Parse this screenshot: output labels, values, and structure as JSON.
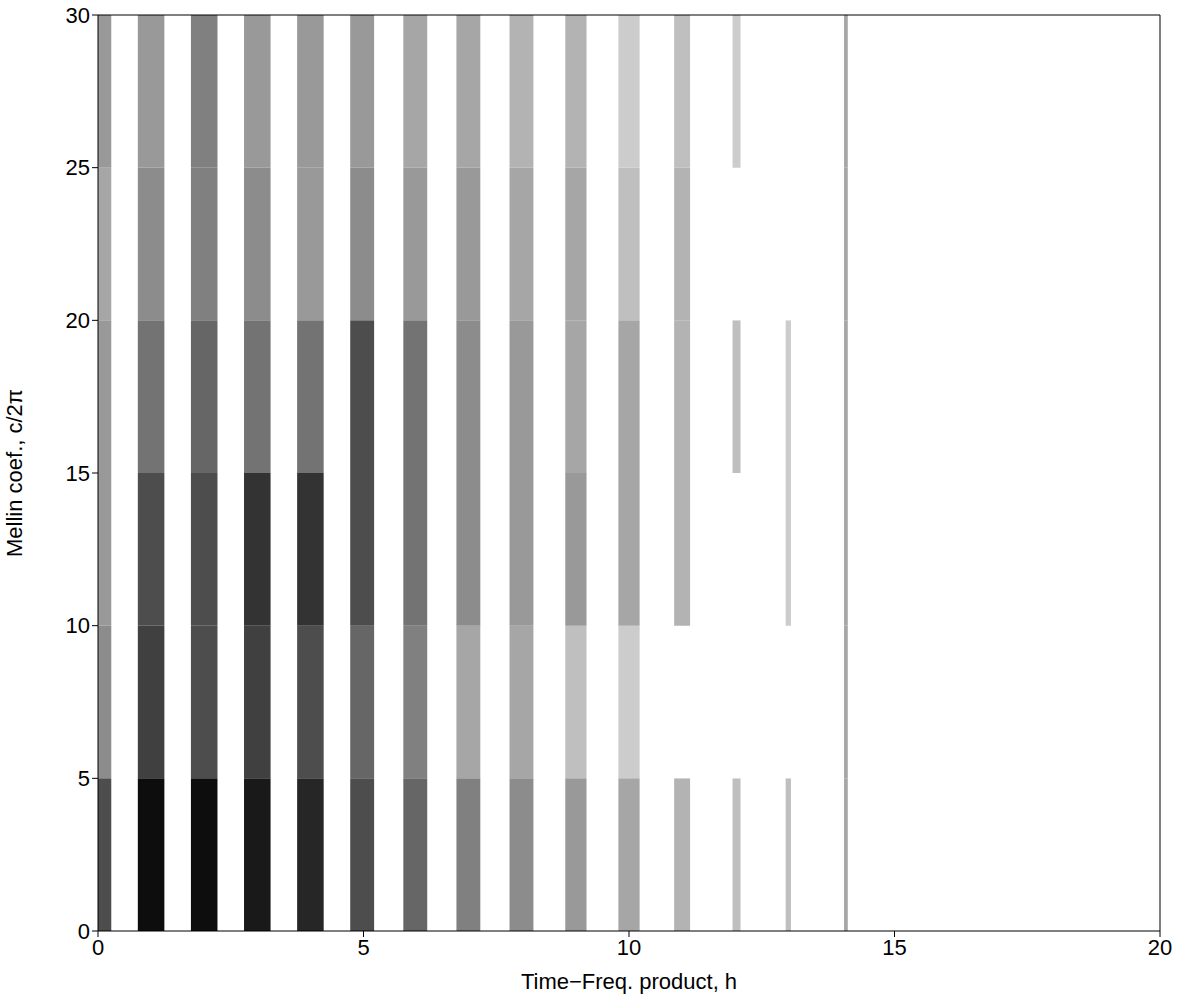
{
  "chart_data": {
    "type": "heatmap",
    "x_label": "Time−Freq. product, h",
    "y_label": "Mellin coef., c/2π",
    "xlim": [
      0,
      20
    ],
    "ylim": [
      0,
      30
    ],
    "xticks": [
      0,
      5,
      10,
      15,
      20
    ],
    "yticks": [
      0,
      5,
      10,
      15,
      20,
      25,
      30
    ],
    "grid": false,
    "color_range": [
      0,
      1
    ],
    "y_edges": [
      0,
      5,
      10,
      15,
      20,
      25,
      30
    ],
    "cells": [
      {
        "x": [
          0,
          0.25
        ],
        "values": [
          0.7,
          0.45,
          0.4,
          0.4,
          0.35,
          0.4
        ]
      },
      {
        "x": [
          0.75,
          1.25
        ],
        "values": [
          0.95,
          0.75,
          0.7,
          0.55,
          0.45,
          0.4
        ]
      },
      {
        "x": [
          1.75,
          2.25
        ],
        "values": [
          0.95,
          0.7,
          0.7,
          0.6,
          0.5,
          0.5
        ]
      },
      {
        "x": [
          2.75,
          3.25
        ],
        "values": [
          0.9,
          0.75,
          0.8,
          0.55,
          0.45,
          0.4
        ]
      },
      {
        "x": [
          3.75,
          4.25
        ],
        "values": [
          0.85,
          0.7,
          0.8,
          0.55,
          0.4,
          0.4
        ]
      },
      {
        "x": [
          4.75,
          5.2
        ],
        "values": [
          0.7,
          0.6,
          0.7,
          0.7,
          0.45,
          0.4
        ]
      },
      {
        "x": [
          5.75,
          6.2
        ],
        "values": [
          0.6,
          0.5,
          0.55,
          0.55,
          0.4,
          0.35
        ]
      },
      {
        "x": [
          6.75,
          7.2
        ],
        "values": [
          0.5,
          0.35,
          0.45,
          0.45,
          0.4,
          0.35
        ]
      },
      {
        "x": [
          7.75,
          8.2
        ],
        "values": [
          0.45,
          0.35,
          0.4,
          0.4,
          0.35,
          0.3
        ]
      },
      {
        "x": [
          8.8,
          9.2
        ],
        "values": [
          0.4,
          0.25,
          0.4,
          0.35,
          0.35,
          0.3
        ]
      },
      {
        "x": [
          9.8,
          10.2
        ],
        "values": [
          0.35,
          0.2,
          0.35,
          0.35,
          0.25,
          0.2
        ]
      },
      {
        "x": [
          10.85,
          11.15
        ],
        "values": [
          0.3,
          0,
          0.3,
          0.3,
          0.3,
          0.25
        ]
      },
      {
        "x": [
          11.95,
          12.1
        ],
        "values": [
          0.25,
          0,
          0,
          0.25,
          0,
          0.2
        ]
      },
      {
        "x": [
          12.95,
          13.05
        ],
        "values": [
          0.25,
          0,
          0.2,
          0.2,
          0,
          0
        ]
      },
      {
        "x": [
          14.05,
          14.12
        ],
        "values": [
          0.35,
          0.35,
          0.35,
          0.35,
          0.35,
          0.35
        ]
      }
    ]
  }
}
